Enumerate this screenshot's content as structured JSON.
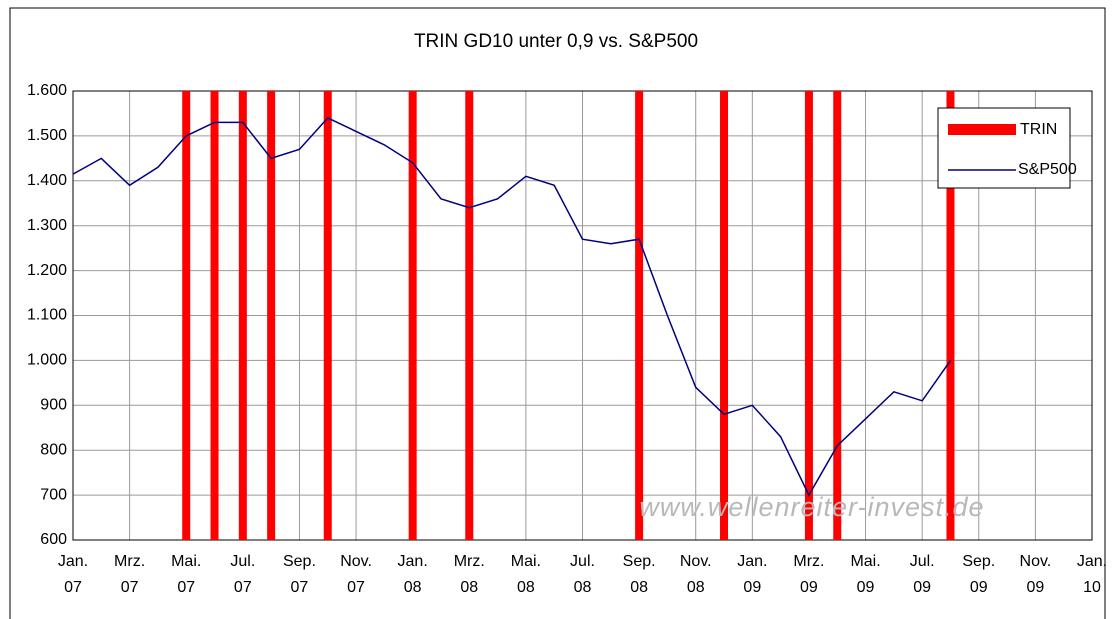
{
  "chart_data": {
    "type": "line",
    "title": "TRIN GD10 unter 0,9 vs. S&P500",
    "x": [
      "2007-01",
      "2007-02",
      "2007-03",
      "2007-04",
      "2007-05",
      "2007-06",
      "2007-07",
      "2007-08",
      "2007-09",
      "2007-10",
      "2007-11",
      "2007-12",
      "2008-01",
      "2008-02",
      "2008-03",
      "2008-04",
      "2008-05",
      "2008-06",
      "2008-07",
      "2008-08",
      "2008-09",
      "2008-10",
      "2008-11",
      "2008-12",
      "2009-01",
      "2009-02",
      "2009-03",
      "2009-04",
      "2009-05",
      "2009-06",
      "2009-07",
      "2009-08"
    ],
    "series": [
      {
        "name": "S&P500",
        "color": "#000080",
        "values": [
          1415,
          1450,
          1390,
          1430,
          1500,
          1530,
          1530,
          1450,
          1470,
          1540,
          1510,
          1480,
          1440,
          1360,
          1340,
          1360,
          1410,
          1390,
          1270,
          1260,
          1270,
          1100,
          940,
          880,
          900,
          830,
          700,
          810,
          870,
          930,
          910,
          1000
        ]
      }
    ],
    "bands": {
      "name": "TRIN",
      "color": "#ff0000",
      "x": [
        "2007-05",
        "2007-06",
        "2007-07",
        "2007-08",
        "2007-10",
        "2008-01",
        "2008-03",
        "2008-09",
        "2008-12",
        "2009-03",
        "2009-04",
        "2009-08"
      ]
    },
    "xlim": [
      "2007-01",
      "2010-01"
    ],
    "xticks": [
      {
        "value": "2007-01",
        "label": "Jan. 07"
      },
      {
        "value": "2007-03",
        "label": "Mrz. 07"
      },
      {
        "value": "2007-05",
        "label": "Mai. 07"
      },
      {
        "value": "2007-07",
        "label": "Jul. 07"
      },
      {
        "value": "2007-09",
        "label": "Sep. 07"
      },
      {
        "value": "2007-11",
        "label": "Nov. 07"
      },
      {
        "value": "2008-01",
        "label": "Jan. 08"
      },
      {
        "value": "2008-03",
        "label": "Mrz. 08"
      },
      {
        "value": "2008-05",
        "label": "Mai. 08"
      },
      {
        "value": "2008-07",
        "label": "Jul. 08"
      },
      {
        "value": "2008-09",
        "label": "Sep. 08"
      },
      {
        "value": "2008-11",
        "label": "Nov. 08"
      },
      {
        "value": "2009-01",
        "label": "Jan. 09"
      },
      {
        "value": "2009-03",
        "label": "Mrz. 09"
      },
      {
        "value": "2009-05",
        "label": "Mai. 09"
      },
      {
        "value": "2009-07",
        "label": "Jul. 09"
      },
      {
        "value": "2009-09",
        "label": "Sep. 09"
      },
      {
        "value": "2009-11",
        "label": "Nov. 09"
      },
      {
        "value": "2010-01",
        "label": "Jan. 10"
      }
    ],
    "ylim": [
      600,
      1600
    ],
    "yticks": [
      600,
      700,
      800,
      900,
      {
        "value": 1000,
        "label": "1.000"
      },
      {
        "value": 1100,
        "label": "1.100"
      },
      {
        "value": 1200,
        "label": "1.200"
      },
      {
        "value": 1300,
        "label": "1.300"
      },
      {
        "value": 1400,
        "label": "1.400"
      },
      {
        "value": 1500,
        "label": "1.500"
      },
      {
        "value": 1600,
        "label": "1.600"
      }
    ],
    "grid": true,
    "legend": "upper right",
    "annotation": "www.wellenreiter-invest.de"
  }
}
